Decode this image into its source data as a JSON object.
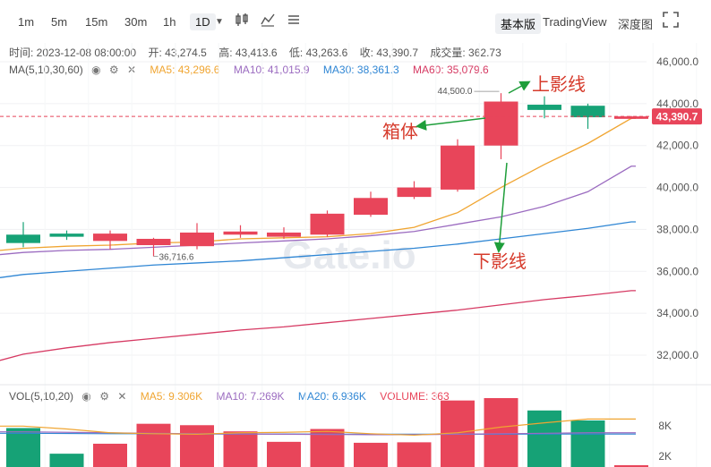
{
  "toolbar": {
    "intervals": [
      "1m",
      "5m",
      "15m",
      "30m",
      "1h",
      "1D"
    ],
    "active_interval": "1D",
    "views": [
      "基本版",
      "TradingView",
      "深度图"
    ],
    "active_view": "基本版"
  },
  "info": {
    "time": "时间: 2023-12-08 08:00:00",
    "open": "开: 43,274.5",
    "high": "高: 43,413.6",
    "low": "低: 43,263.6",
    "close": "收: 43,390.7",
    "volume": "成交量: 362.73"
  },
  "ma_legend": {
    "label": "MA(5,10,30,60)",
    "ma5": "MA5: 43,296.6",
    "ma10": "MA10: 41,015.9",
    "ma30": "MA30: 38,361.3",
    "ma60": "MA60: 35,079.6"
  },
  "vol_legend": {
    "label": "VOL(5,10,20)",
    "ma5": "MA5: 9.306K",
    "ma10": "MA10: 7.269K",
    "ma20": "MA20: 6.936K",
    "volume": "VOLUME: 363"
  },
  "colors": {
    "up": "#e8455a",
    "down": "#16a276",
    "ma5": "#f0a531",
    "ma10": "#9b6bc0",
    "ma30": "#2f86d4",
    "ma60": "#d63a63",
    "annotation": "#d63b2c",
    "arrow": "#1e9e3a"
  },
  "watermark": "Gate.io",
  "annotations": {
    "upper_shadow": "上影线",
    "body": "箱体",
    "lower_shadow": "下影线"
  },
  "chart_data": {
    "type": "candlestick",
    "price_axis": {
      "ticks": [
        32000,
        34000,
        36000,
        38000,
        40000,
        42000,
        44000,
        46000
      ],
      "tick_labels": [
        "32,000.0",
        "34,000.0",
        "36,000.0",
        "38,000.0",
        "40,000.0",
        "42,000.0",
        "44,000.0",
        "46,000.0"
      ]
    },
    "current_price": 43390.7,
    "current_price_label": "43,390.7",
    "high_label": "44,500.0",
    "low_label": "36,716.6",
    "candles": [
      {
        "open": 37750,
        "close": 37350,
        "high": 38350,
        "low": 37150
      },
      {
        "open": 37800,
        "close": 37650,
        "high": 37950,
        "low": 37500
      },
      {
        "open": 37450,
        "close": 37800,
        "high": 37950,
        "low": 37050
      },
      {
        "open": 37250,
        "close": 37550,
        "high": 37600,
        "low": 36716.6
      },
      {
        "open": 37200,
        "close": 37850,
        "high": 38300,
        "low": 37050
      },
      {
        "open": 37750,
        "close": 37900,
        "high": 38200,
        "low": 37600
      },
      {
        "open": 37650,
        "close": 37850,
        "high": 38100,
        "low": 37550
      },
      {
        "open": 37750,
        "close": 38750,
        "high": 38900,
        "low": 37650
      },
      {
        "open": 38700,
        "close": 39500,
        "high": 39800,
        "low": 38600
      },
      {
        "open": 39550,
        "close": 40000,
        "high": 40300,
        "low": 39450
      },
      {
        "open": 39900,
        "close": 42000,
        "high": 42300,
        "low": 39800
      },
      {
        "open": 42000,
        "close": 44100,
        "high": 44500,
        "low": 41350
      },
      {
        "open": 43950,
        "close": 43700,
        "high": 44350,
        "low": 43300
      },
      {
        "open": 43900,
        "close": 43350,
        "high": 44000,
        "low": 42800
      },
      {
        "open": 43274.5,
        "close": 43390.7,
        "high": 43413.6,
        "low": 43263.6
      }
    ],
    "ma5": [
      37100,
      37200,
      37250,
      37350,
      37400,
      37550,
      37600,
      37650,
      37800,
      38100,
      38800,
      40000,
      41100,
      42100,
      43296.6
    ],
    "ma10": [
      36900,
      37000,
      37050,
      37150,
      37250,
      37350,
      37450,
      37550,
      37700,
      37900,
      38250,
      38600,
      39100,
      39800,
      41015.9
    ],
    "ma30": [
      35850,
      36000,
      36150,
      36300,
      36400,
      36500,
      36650,
      36800,
      36950,
      37100,
      37300,
      37550,
      37800,
      38050,
      38361.3
    ],
    "ma60": [
      32050,
      32350,
      32600,
      32800,
      33000,
      33200,
      33350,
      33550,
      33750,
      33950,
      34150,
      34400,
      34650,
      34850,
      35079.6
    ],
    "volume_axis": {
      "tick_labels": [
        "2K",
        "8K"
      ]
    },
    "volumes": [
      8200,
      2800,
      4900,
      9100,
      8800,
      7500,
      5300,
      8000,
      5100,
      5200,
      14000,
      14500,
      11900,
      9800,
      363
    ],
    "vol_ma5": [
      8600,
      8000,
      7200,
      7000,
      6900,
      7200,
      7300,
      7500,
      7000,
      6700,
      7200,
      8400,
      9300,
      10100,
      9306
    ],
    "vol_ma10": [
      7400,
      7300,
      7200,
      7100,
      7000,
      6950,
      6900,
      6850,
      6800,
      6800,
      6900,
      7000,
      7100,
      7200,
      7269
    ],
    "vol_ma20": [
      7100,
      7050,
      7000,
      7000,
      6950,
      6950,
      6950,
      6900,
      6900,
      6900,
      6900,
      6920,
      6930,
      6935,
      6936
    ]
  }
}
